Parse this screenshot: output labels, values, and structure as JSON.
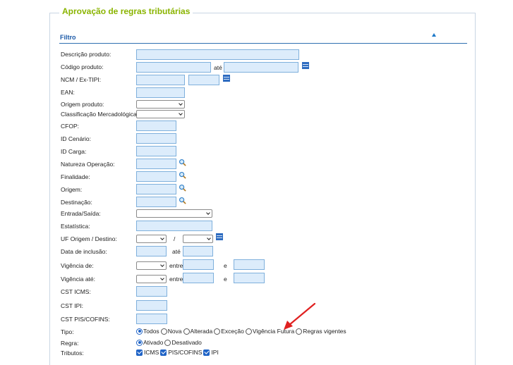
{
  "panel": {
    "title": "Aprovação de regras tributárias",
    "section_title": "Filtro"
  },
  "filters": {
    "descricao_produto": {
      "label": "Descrição produto:",
      "value": ""
    },
    "codigo_produto": {
      "label": "Código produto:",
      "value_from": "",
      "separator": "até",
      "value_to": ""
    },
    "ncm": {
      "label": "NCM / Ex-TIPI:",
      "value": "",
      "ex_tipi": ""
    },
    "ean": {
      "label": "EAN:",
      "value": ""
    },
    "origem_produto": {
      "label": "Origem produto:",
      "selected": ""
    },
    "classificacao": {
      "label": "Classificação Mercadológica:",
      "selected": ""
    },
    "cfop": {
      "label": "CFOP:",
      "value": ""
    },
    "id_cenario": {
      "label": "ID Cenário:",
      "value": ""
    },
    "id_carga": {
      "label": "ID Carga:",
      "value": ""
    },
    "natureza_operacao": {
      "label": "Natureza Operação:",
      "value": ""
    },
    "finalidade": {
      "label": "Finalidade:",
      "value": ""
    },
    "origem": {
      "label": "Origem:",
      "value": ""
    },
    "destinacao": {
      "label": "Destinação:",
      "value": ""
    },
    "entrada_saida": {
      "label": "Entrada/Saída:",
      "selected": ""
    },
    "estatistica": {
      "label": "Estatística:",
      "value": ""
    },
    "uf": {
      "label": "UF Origem / Destino:",
      "origem": "",
      "separator": "/",
      "destino": ""
    },
    "data_inclusao": {
      "label": "Data de inclusão:",
      "from": "",
      "separator": "até",
      "to": ""
    },
    "vigencia_de": {
      "label": "Vigência de:",
      "operator": "",
      "entre_label": "entre",
      "from": "",
      "e_label": "e",
      "to": ""
    },
    "vigencia_ate": {
      "label": "Vigência até:",
      "operator": "",
      "entre_label": "entre",
      "from": "",
      "e_label": "e",
      "to": ""
    },
    "cst_icms": {
      "label": "CST ICMS:",
      "value": ""
    },
    "cst_ipi": {
      "label": "CST IPI:",
      "value": ""
    },
    "cst_pis_cofins": {
      "label": "CST PIS/COFINS:",
      "value": ""
    }
  },
  "tipo": {
    "label": "Tipo:",
    "options": [
      "Todos",
      "Nova",
      "Alterada",
      "Exceção",
      "Vigência Futura",
      "Regras vigentes"
    ],
    "selected": "Todos"
  },
  "regra": {
    "label": "Regra:",
    "options": [
      "Ativado",
      "Desativado"
    ],
    "selected": "Ativado"
  },
  "tributos": {
    "label": "Tributos:",
    "options": [
      "ICMS",
      "PIS/COFINS",
      "IPI"
    ],
    "checked": [
      "ICMS",
      "PIS/COFINS",
      "IPI"
    ]
  },
  "colors": {
    "title_green": "#8ab400",
    "section_blue": "#1c5aa8",
    "input_fill": "#dcecfb",
    "input_border": "#7fb0dc",
    "annotation_arrow": "#e02020",
    "control_blue": "#1f63c6"
  },
  "icons": {
    "collapse": "triangle-up-icon",
    "list": "list-icon",
    "search": "magnifier-icon",
    "annotation": "red-arrow-icon"
  }
}
